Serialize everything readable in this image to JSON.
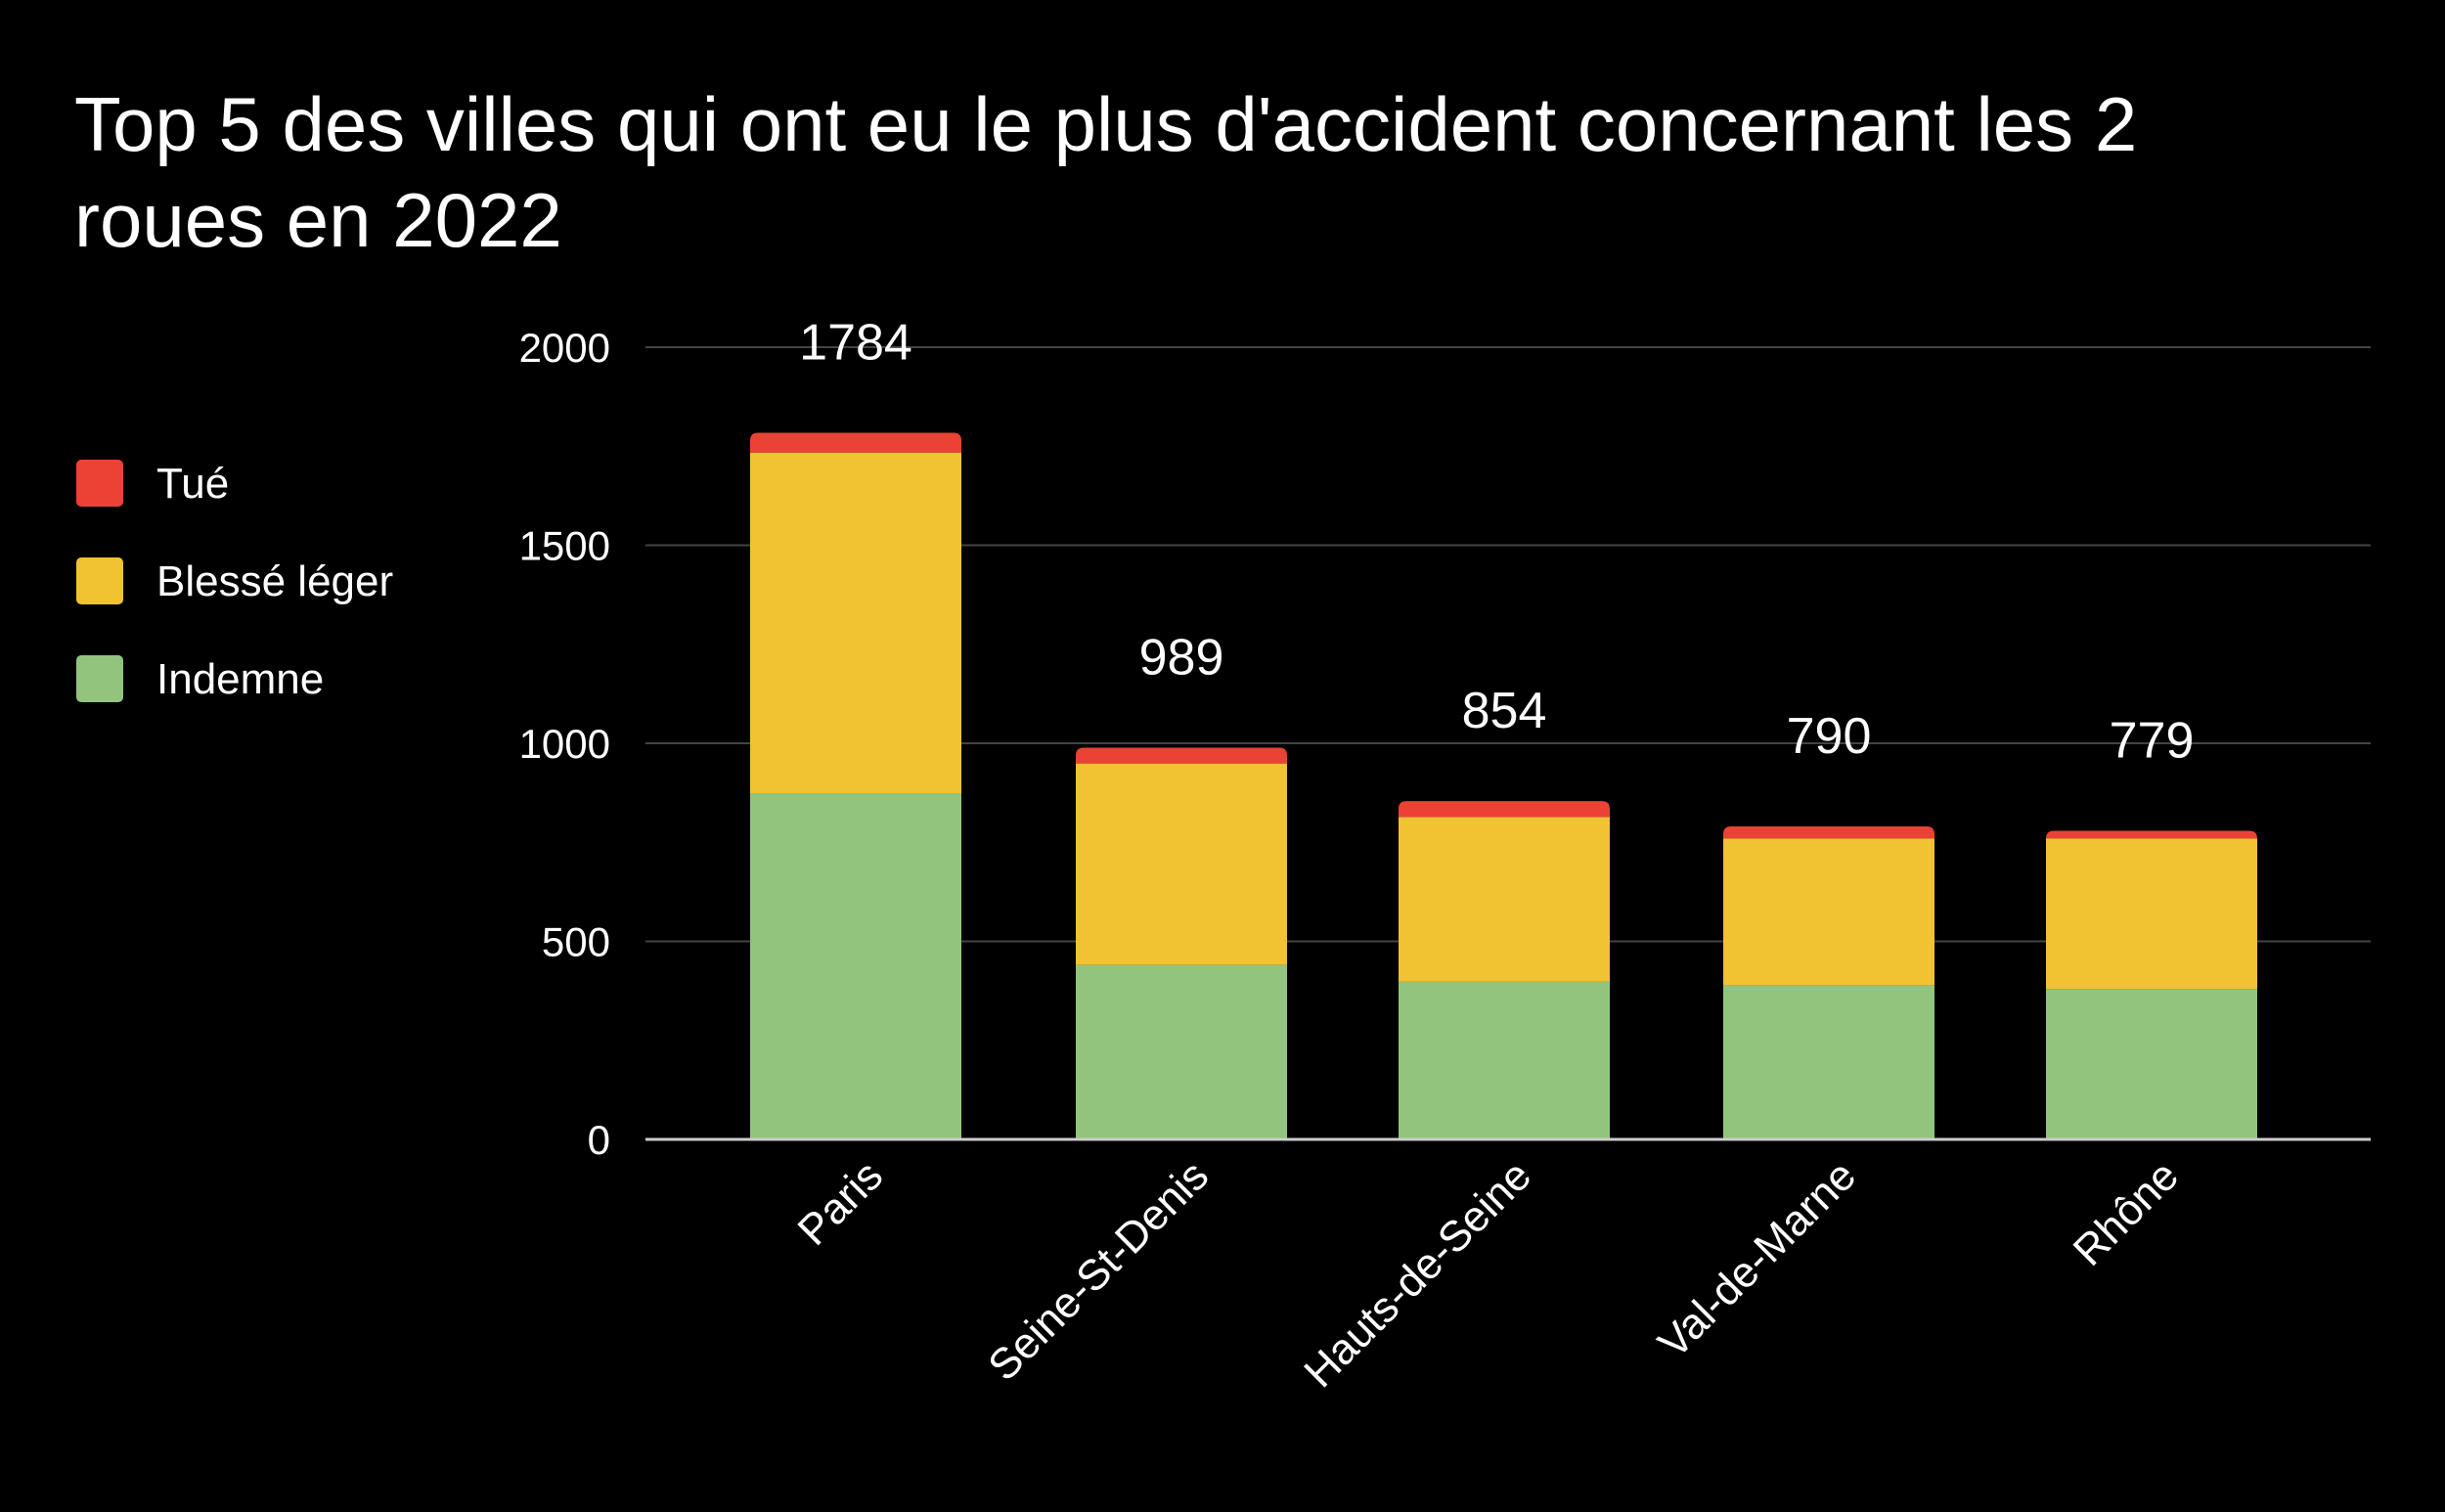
{
  "chart_data": {
    "type": "bar",
    "stacked": true,
    "title": "Top 5 des villes qui ont eu le plus d'accident concernant les 2 roues en 2022",
    "categories": [
      "Paris",
      "Seine-St-Denis",
      "Hauts-de-Seine",
      "Val-de-Marne",
      "Rhône"
    ],
    "series": [
      {
        "name": "Indemne",
        "color": "#93c47d",
        "values": [
          874,
          440,
          400,
          390,
          380
        ]
      },
      {
        "name": "Blessé léger",
        "color": "#f1c232",
        "values": [
          860,
          509,
          414,
          370,
          380
        ]
      },
      {
        "name": "Tué",
        "color": "#ea4335",
        "values": [
          50,
          40,
          40,
          30,
          19
        ]
      }
    ],
    "totals": [
      "1784",
      "989",
      "854",
      "790",
      "779"
    ],
    "legend": [
      {
        "name": "Tué",
        "color": "#ea4335"
      },
      {
        "name": "Blessé léger",
        "color": "#f1c232"
      },
      {
        "name": "Indemne",
        "color": "#93c47d"
      }
    ],
    "ylim": [
      0,
      2000
    ],
    "yticks": [
      "0",
      "500",
      "1000",
      "1500",
      "2000"
    ],
    "grid": true,
    "legend_position": "left",
    "background": "#000000",
    "text_color": "#ffffff",
    "gridline_color": "#444444",
    "axis_color": "#cccccc"
  }
}
